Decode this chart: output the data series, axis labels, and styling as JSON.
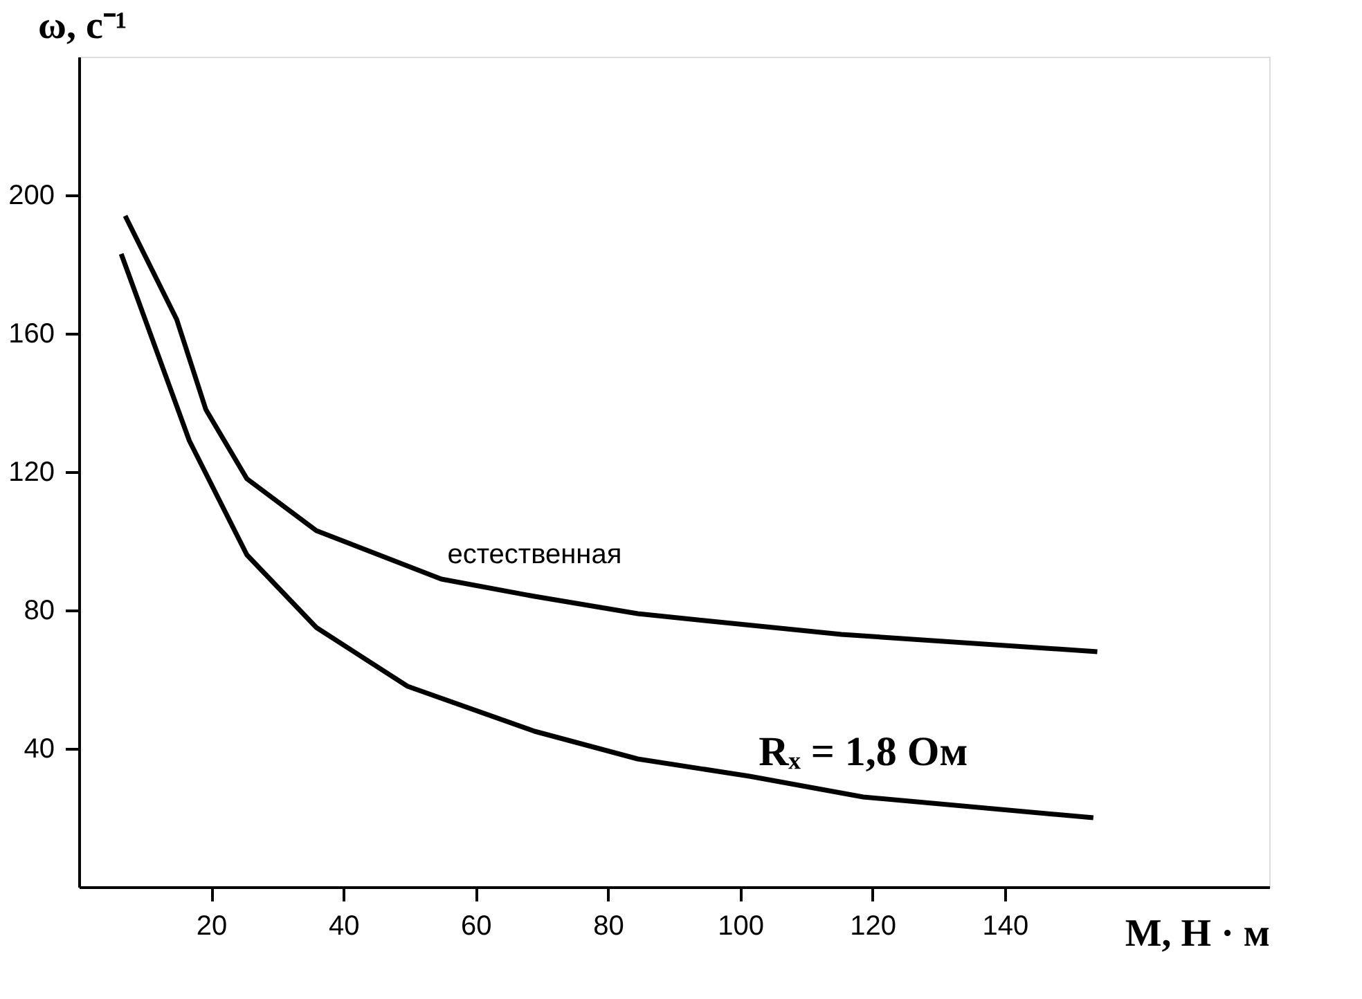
{
  "chart_data": {
    "type": "line",
    "xlabel": "М, Н · м",
    "ylabel": "ω, с⁻¹",
    "xlim": [
      0,
      180
    ],
    "ylim": [
      0,
      240
    ],
    "xticks": [
      20,
      40,
      60,
      80,
      100,
      120,
      140
    ],
    "yticks": [
      40,
      80,
      120,
      160,
      200
    ],
    "grid": false,
    "legend": false,
    "marker": "none",
    "line_style": "solid",
    "series": [
      {
        "name": "естественная",
        "color": "#000000",
        "x": [
          7.0,
          14.8,
          19.2,
          25.4,
          35.9,
          54.8,
          68.9,
          84.5,
          94.6,
          115.3,
          154.0
        ],
        "values": [
          194,
          164,
          138,
          118,
          103,
          89,
          84,
          79,
          77,
          73,
          68
        ]
      },
      {
        "name": "Rₓ = 1,8 Ом",
        "color": "#000000",
        "x": [
          6.4,
          16.7,
          25.4,
          35.9,
          49.7,
          68.9,
          84.5,
          101.4,
          118.6,
          153.4
        ],
        "values": [
          183,
          129,
          96,
          75,
          58,
          45,
          37,
          32,
          26,
          20
        ]
      }
    ]
  }
}
